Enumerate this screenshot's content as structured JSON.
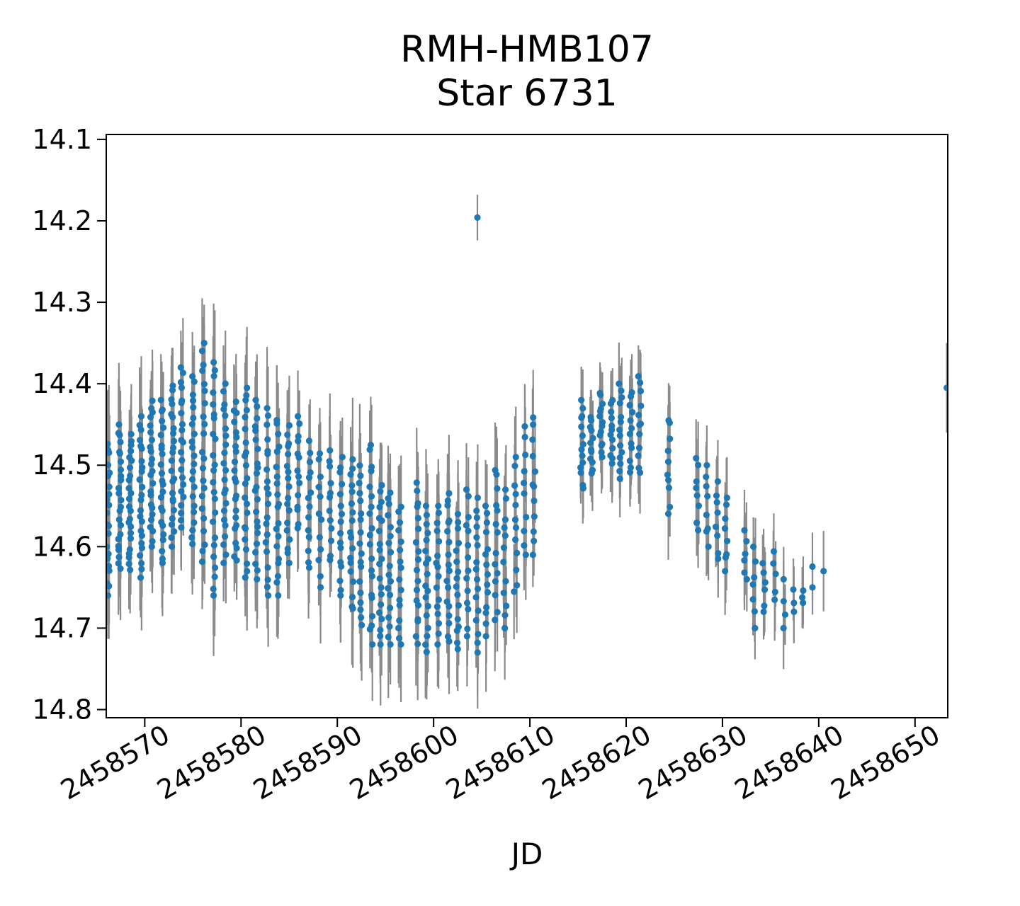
{
  "chart_data": {
    "type": "scatter",
    "title": "RMH-HMB107",
    "subtitle": "Star 6731",
    "xlabel": "JD",
    "ylabel": "",
    "x_ticks": [
      2458570,
      2458580,
      2458590,
      2458600,
      2458610,
      2458620,
      2458630,
      2458640,
      2458650
    ],
    "y_ticks": [
      "14.1",
      "14.2",
      "14.3",
      "14.4",
      "14.5",
      "14.6",
      "14.7",
      "14.8"
    ],
    "x_range": [
      2458566.0,
      2458653.4
    ],
    "y_range": [
      14.094,
      14.81
    ],
    "y_axis_inverted_magnitudes": true,
    "grid": false,
    "legend": "none",
    "marker_color": "#1f77b4",
    "errorbar_color": "#8a8a8a",
    "axis_color": "#000000",
    "clusters": [
      {
        "jd": 2458566.2,
        "bright": 14.47,
        "faint": 14.66,
        "n": 22,
        "err": 0.065
      },
      {
        "jd": 2458567.4,
        "bright": 14.45,
        "faint": 14.63,
        "n": 24,
        "err": 0.06
      },
      {
        "jd": 2458568.5,
        "bright": 14.46,
        "faint": 14.63,
        "n": 24,
        "err": 0.06
      },
      {
        "jd": 2458569.6,
        "bright": 14.44,
        "faint": 14.64,
        "n": 24,
        "err": 0.06
      },
      {
        "jd": 2458570.7,
        "bright": 14.42,
        "faint": 14.6,
        "n": 24,
        "err": 0.055
      },
      {
        "jd": 2458571.8,
        "bright": 14.42,
        "faint": 14.62,
        "n": 24,
        "err": 0.055
      },
      {
        "jd": 2458572.9,
        "bright": 14.4,
        "faint": 14.6,
        "n": 24,
        "err": 0.055
      },
      {
        "jd": 2458573.9,
        "bright": 14.38,
        "faint": 14.58,
        "n": 22,
        "err": 0.055
      },
      {
        "jd": 2458575.0,
        "bright": 14.39,
        "faint": 14.6,
        "n": 22,
        "err": 0.055
      },
      {
        "jd": 2458576.1,
        "bright": 14.35,
        "faint": 14.62,
        "n": 22,
        "err": 0.06
      },
      {
        "jd": 2458577.2,
        "bright": 14.37,
        "faint": 14.66,
        "n": 24,
        "err": 0.06
      },
      {
        "jd": 2458578.3,
        "bright": 14.4,
        "faint": 14.62,
        "n": 22,
        "err": 0.055
      },
      {
        "jd": 2458579.4,
        "bright": 14.42,
        "faint": 14.62,
        "n": 22,
        "err": 0.055
      },
      {
        "jd": 2458580.5,
        "bright": 14.4,
        "faint": 14.64,
        "n": 22,
        "err": 0.06
      },
      {
        "jd": 2458581.6,
        "bright": 14.42,
        "faint": 14.64,
        "n": 22,
        "err": 0.055
      },
      {
        "jd": 2458582.7,
        "bright": 14.43,
        "faint": 14.66,
        "n": 20,
        "err": 0.06
      },
      {
        "jd": 2458583.8,
        "bright": 14.44,
        "faint": 14.66,
        "n": 20,
        "err": 0.06
      },
      {
        "jd": 2458584.9,
        "bright": 14.45,
        "faint": 14.62,
        "n": 18,
        "err": 0.055
      },
      {
        "jd": 2458586.0,
        "bright": 14.44,
        "faint": 14.58,
        "n": 14,
        "err": 0.05
      },
      {
        "jd": 2458587.1,
        "bright": 14.47,
        "faint": 14.63,
        "n": 14,
        "err": 0.055
      },
      {
        "jd": 2458588.2,
        "bright": 14.48,
        "faint": 14.65,
        "n": 12,
        "err": 0.055
      },
      {
        "jd": 2458589.3,
        "bright": 14.48,
        "faint": 14.62,
        "n": 12,
        "err": 0.055
      },
      {
        "jd": 2458590.4,
        "bright": 14.49,
        "faint": 14.66,
        "n": 16,
        "err": 0.06
      },
      {
        "jd": 2458591.5,
        "bright": 14.49,
        "faint": 14.68,
        "n": 18,
        "err": 0.06
      },
      {
        "jd": 2458592.4,
        "bright": 14.5,
        "faint": 14.7,
        "n": 18,
        "err": 0.06
      },
      {
        "jd": 2458593.5,
        "bright": 14.47,
        "faint": 14.72,
        "n": 20,
        "err": 0.06
      },
      {
        "jd": 2458594.5,
        "bright": 14.52,
        "faint": 14.72,
        "n": 20,
        "err": 0.06
      },
      {
        "jd": 2458595.4,
        "bright": 14.53,
        "faint": 14.72,
        "n": 18,
        "err": 0.06
      },
      {
        "jd": 2458596.5,
        "bright": 14.55,
        "faint": 14.72,
        "n": 16,
        "err": 0.06
      },
      {
        "jd": 2458598.3,
        "bright": 14.52,
        "faint": 14.72,
        "n": 18,
        "err": 0.06
      },
      {
        "jd": 2458599.3,
        "bright": 14.55,
        "faint": 14.73,
        "n": 18,
        "err": 0.06
      },
      {
        "jd": 2458600.4,
        "bright": 14.55,
        "faint": 14.72,
        "n": 16,
        "err": 0.06
      },
      {
        "jd": 2458601.5,
        "bright": 14.53,
        "faint": 14.72,
        "n": 18,
        "err": 0.06
      },
      {
        "jd": 2458602.5,
        "bright": 14.56,
        "faint": 14.73,
        "n": 16,
        "err": 0.06
      },
      {
        "jd": 2458603.5,
        "bright": 14.53,
        "faint": 14.71,
        "n": 14,
        "err": 0.055
      },
      {
        "jd": 2458604.5,
        "bright": 14.54,
        "faint": 14.73,
        "n": 16,
        "err": 0.06
      },
      {
        "jd": 2458605.5,
        "bright": 14.55,
        "faint": 14.71,
        "n": 14,
        "err": 0.055
      },
      {
        "jd": 2458606.5,
        "bright": 14.5,
        "faint": 14.69,
        "n": 14,
        "err": 0.055
      },
      {
        "jd": 2458607.4,
        "bright": 14.53,
        "faint": 14.7,
        "n": 12,
        "err": 0.055
      },
      {
        "jd": 2458608.5,
        "bright": 14.49,
        "faint": 14.66,
        "n": 12,
        "err": 0.05
      },
      {
        "jd": 2458609.5,
        "bright": 14.45,
        "faint": 14.61,
        "n": 10,
        "err": 0.05
      },
      {
        "jd": 2458610.4,
        "bright": 14.44,
        "faint": 14.61,
        "n": 12,
        "err": 0.05
      },
      {
        "jd": 2458615.4,
        "bright": 14.42,
        "faint": 14.53,
        "n": 14,
        "err": 0.045
      },
      {
        "jd": 2458616.4,
        "bright": 14.44,
        "faint": 14.51,
        "n": 12,
        "err": 0.04
      },
      {
        "jd": 2458617.4,
        "bright": 14.41,
        "faint": 14.49,
        "n": 14,
        "err": 0.04
      },
      {
        "jd": 2458618.5,
        "bright": 14.42,
        "faint": 14.5,
        "n": 12,
        "err": 0.04
      },
      {
        "jd": 2458619.4,
        "bright": 14.4,
        "faint": 14.52,
        "n": 14,
        "err": 0.042
      },
      {
        "jd": 2458620.5,
        "bright": 14.41,
        "faint": 14.51,
        "n": 12,
        "err": 0.042
      },
      {
        "jd": 2458621.4,
        "bright": 14.39,
        "faint": 14.51,
        "n": 12,
        "err": 0.042
      },
      {
        "jd": 2458624.4,
        "bright": 14.44,
        "faint": 14.56,
        "n": 10,
        "err": 0.045
      },
      {
        "jd": 2458627.4,
        "bright": 14.49,
        "faint": 14.58,
        "n": 8,
        "err": 0.045
      },
      {
        "jd": 2458628.4,
        "bright": 14.5,
        "faint": 14.6,
        "n": 8,
        "err": 0.045
      },
      {
        "jd": 2458629.4,
        "bright": 14.52,
        "faint": 14.62,
        "n": 8,
        "err": 0.045
      },
      {
        "jd": 2458630.4,
        "bright": 14.54,
        "faint": 14.63,
        "n": 8,
        "err": 0.045
      },
      {
        "jd": 2458632.4,
        "bright": 14.58,
        "faint": 14.64,
        "n": 6,
        "err": 0.042
      },
      {
        "jd": 2458633.3,
        "bright": 14.6,
        "faint": 14.7,
        "n": 7,
        "err": 0.042
      },
      {
        "jd": 2458634.3,
        "bright": 14.62,
        "faint": 14.68,
        "n": 6,
        "err": 0.042
      },
      {
        "jd": 2458635.4,
        "bright": 14.6,
        "faint": 14.67,
        "n": 5,
        "err": 0.04
      },
      {
        "jd": 2458636.4,
        "bright": 14.64,
        "faint": 14.7,
        "n": 4,
        "err": 0.04
      },
      {
        "jd": 2458637.4,
        "bright": 14.65,
        "faint": 14.68,
        "n": 3,
        "err": 0.04
      },
      {
        "jd": 2458638.3,
        "bright": 14.65,
        "faint": 14.67,
        "n": 3,
        "err": 0.04
      },
      {
        "jd": 2458639.4,
        "bright": 14.62,
        "faint": 14.65,
        "n": 2,
        "err": 0.04
      },
      {
        "jd": 2458640.4,
        "bright": 14.63,
        "faint": 14.63,
        "n": 1,
        "err": 0.04
      }
    ],
    "single_points": [
      {
        "jd": 2458604.55,
        "mag": 14.196,
        "err": 0.028,
        "note": "bright outlier"
      },
      {
        "jd": 2458653.3,
        "mag": 14.405,
        "err": 0.055,
        "note": "clipped at right edge"
      }
    ]
  }
}
